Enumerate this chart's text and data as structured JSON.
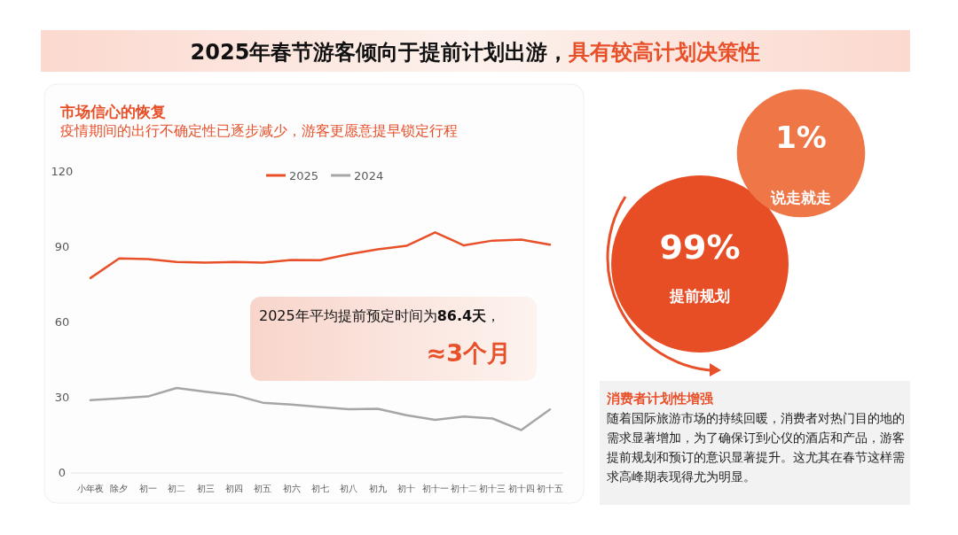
{
  "chart_data": [
    {
      "type": "line",
      "title": "2025年春节游客倾向于提前计划出游，**具有较高计划决策性**",
      "subtitle": "市场信心的恢复",
      "annotations": [
        "疫情期间的出行不确定性已逐步减少，游客更愿意提早锁定行程",
        "2025年平均提前预定时间为**86.4天**，",
        "≈3个月"
      ],
      "categories": [
        "小年夜",
        "除夕",
        "初一",
        "初二",
        "初三",
        "初四",
        "初五",
        "初六",
        "初七",
        "初八",
        "初九",
        "初十",
        "初十一",
        "初十二",
        "初十三",
        "初十四",
        "初十五"
      ],
      "series": [
        {
          "name": "2025",
          "color": "#e8502a",
          "values": [
            77.7,
            85.5,
            85.2,
            84.1,
            83.8,
            84.1,
            83.8,
            84.9,
            84.8,
            87.2,
            89.1,
            90.5,
            95.9,
            90.7,
            92.6,
            93.0,
            91.0
          ]
        },
        {
          "name": "2024",
          "color": "#a6a6a6",
          "values": [
            29.0,
            29.7,
            30.5,
            33.9,
            32.4,
            31.1,
            28.0,
            27.3,
            26.3,
            25.4,
            25.6,
            23.0,
            21.2,
            22.5,
            21.7,
            17.1,
            25.3
          ]
        }
      ],
      "ylim": [
        0,
        120
      ],
      "yticks": [
        0,
        30,
        60,
        90,
        120
      ],
      "legend": "top",
      "marker": "none",
      "line_style": "solid"
    },
    {
      "type": "other",
      "categories": [
        "提前规划",
        "说走就走"
      ],
      "values": [
        99,
        1
      ],
      "value_labels": [
        "99%",
        "1%"
      ],
      "colors": [
        "#e84e26",
        "#ef7647"
      ]
    },
    {
      "type": "other",
      "title": "消费者计划性增强",
      "annotations": [
        "随着国际旅游市场的持续回暖，消费者对热门目的地的需求显著增加，为了确保订到心仪的酒店和产品，游客提前规划和预订的意识显著提升。这尤其在春节这样需求高峰期表现得尤为明显。"
      ]
    }
  ]
}
